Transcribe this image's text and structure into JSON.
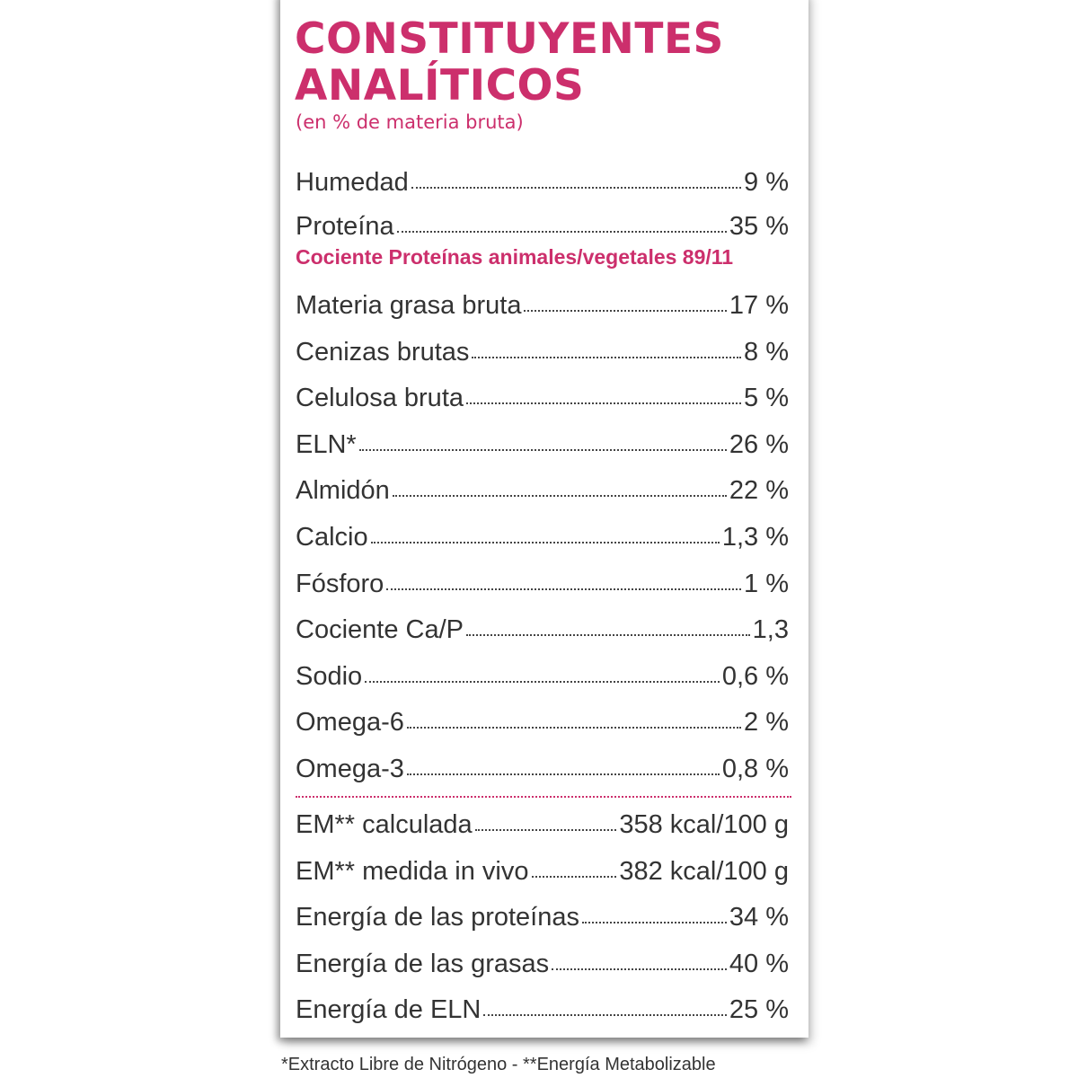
{
  "header": {
    "title_line1": "CONSTITUYENTES",
    "title_line2": "ANALÍTICOS",
    "subtitle": "(en % de materia bruta)"
  },
  "rows_top": [
    {
      "label": "Humedad",
      "value": "9 %"
    },
    {
      "label": "Proteína",
      "value": "35 %"
    }
  ],
  "ratio_note": "Cociente Proteínas animales/vegetales 89/11",
  "rows_main": [
    {
      "label": "Materia grasa bruta",
      "value": "17 %"
    },
    {
      "label": "Cenizas brutas",
      "value": "8 %"
    },
    {
      "label": "Celulosa bruta",
      "value": "5 %"
    },
    {
      "label": "ELN*",
      "value": "26 %"
    },
    {
      "label": "Almidón",
      "value": "22 %"
    },
    {
      "label": "Calcio",
      "value": "1,3 %"
    },
    {
      "label": "Fósforo",
      "value": "1 %"
    },
    {
      "label": "Cociente Ca/P",
      "value": "1,3"
    },
    {
      "label": "Sodio",
      "value": "0,6 %"
    },
    {
      "label": "Omega-6",
      "value": "2 %"
    },
    {
      "label": "Omega-3",
      "value": "0,8 %"
    }
  ],
  "rows_energy": [
    {
      "label": "EM** calculada",
      "value": "358 kcal/100 g"
    },
    {
      "label": "EM** medida in vivo",
      "value": "382 kcal/100 g"
    },
    {
      "label": "Energía de las proteínas",
      "value": "34 %"
    },
    {
      "label": "Energía de las grasas",
      "value": "40 %"
    },
    {
      "label": "Energía de ELN",
      "value": "25 %"
    }
  ],
  "footnote": "*Extracto Libre de Nitrógeno - **Energía Metabolizable",
  "colors": {
    "accent": "#cc2f6c",
    "text": "#333333"
  }
}
